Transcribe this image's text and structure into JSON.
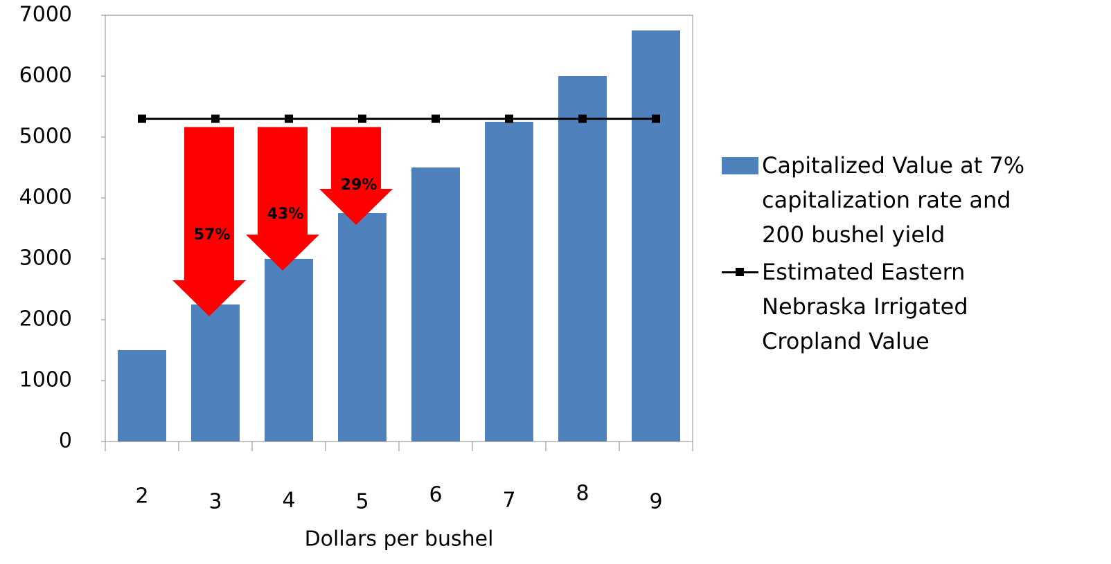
{
  "chart_data": {
    "type": "bar",
    "categories": [
      "2",
      "3",
      "4",
      "5",
      "6",
      "7",
      "8",
      "9"
    ],
    "x_label": "Dollars per bushel",
    "series": [
      {
        "name": "Capitalized Value at 7% capitalization rate and 200 bushel yield",
        "type": "bar",
        "color": "#4f81bd",
        "values": [
          1500,
          2250,
          3000,
          3750,
          4500,
          5250,
          6000,
          6750
        ]
      },
      {
        "name": "Estimated Eastern Nebraska Irrigated Cropland Value",
        "type": "line",
        "color": "#000000",
        "values": [
          5300,
          5300,
          5300,
          5300,
          5300,
          5300,
          5300,
          5300
        ]
      }
    ],
    "annotations": [
      "57%",
      "43%",
      "29%"
    ],
    "ylim": [
      0,
      7000
    ],
    "yticks": [
      0,
      1000,
      2000,
      3000,
      4000,
      5000,
      6000,
      7000
    ],
    "legend": "right"
  }
}
